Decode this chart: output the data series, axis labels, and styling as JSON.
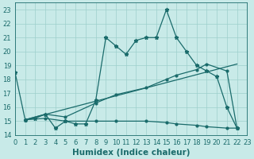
{
  "xlabel": "Humidex (Indice chaleur)",
  "bg_color": "#c8eae8",
  "line_color": "#1a6b6b",
  "xlim": [
    0,
    23
  ],
  "ylim": [
    14,
    23.5
  ],
  "yticks": [
    14,
    15,
    16,
    17,
    18,
    19,
    20,
    21,
    22,
    23
  ],
  "xticks": [
    0,
    1,
    2,
    3,
    4,
    5,
    6,
    7,
    8,
    9,
    10,
    11,
    12,
    13,
    14,
    15,
    16,
    17,
    18,
    19,
    20,
    21,
    22,
    23
  ],
  "series1_x": [
    0,
    1,
    2,
    3,
    4,
    5,
    6,
    7,
    8,
    9,
    10,
    11,
    12,
    13,
    14,
    15,
    16,
    17,
    18,
    19,
    20,
    21,
    22
  ],
  "series1_y": [
    18.5,
    15.1,
    15.2,
    15.5,
    14.5,
    15.0,
    14.8,
    14.8,
    16.5,
    21.0,
    20.4,
    19.8,
    20.8,
    21.0,
    21.0,
    23.0,
    21.0,
    20.0,
    19.0,
    18.6,
    18.2,
    16.0,
    14.5
  ],
  "series2_x": [
    1,
    3,
    5,
    8,
    10,
    13,
    15,
    16,
    18,
    19,
    21,
    22
  ],
  "series2_y": [
    15.1,
    15.5,
    15.3,
    16.3,
    16.9,
    17.4,
    18.0,
    18.3,
    18.7,
    19.1,
    18.6,
    14.5
  ],
  "series3_x": [
    1,
    3,
    5,
    8,
    10,
    13,
    15,
    16,
    18,
    19,
    21,
    22
  ],
  "series3_y": [
    15.1,
    15.2,
    15.0,
    15.0,
    15.0,
    15.0,
    14.9,
    14.8,
    14.7,
    14.6,
    14.5,
    14.5
  ],
  "trend_x": [
    1,
    22
  ],
  "trend_y": [
    15.1,
    19.1
  ],
  "grid_color": "#9dcfcc",
  "tick_fontsize": 6,
  "label_fontsize": 7.5
}
